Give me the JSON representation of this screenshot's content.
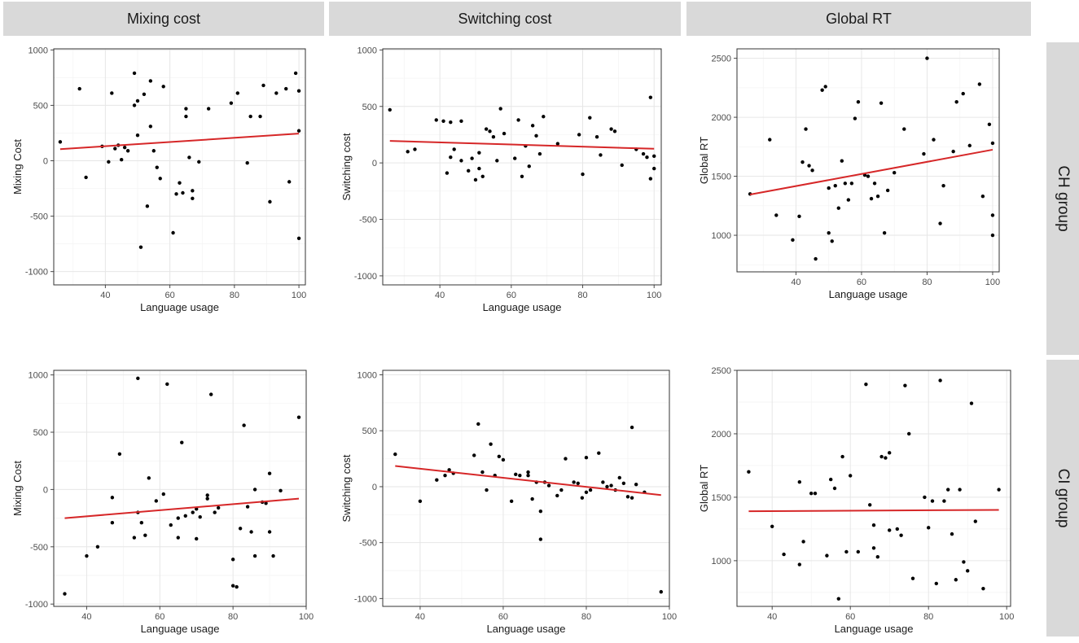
{
  "column_headers": [
    "Mixing cost",
    "Switching cost",
    "Global RT"
  ],
  "row_headers": [
    "CH group",
    "CI group"
  ],
  "colors": {
    "header_bg": "#d9d9d9",
    "grid_major": "#e6e6e6",
    "grid_minor": "#f3f3f3",
    "point": "#000000",
    "fit_line": "#d62728"
  },
  "chart_data": [
    {
      "type": "scatter",
      "title": "Mixing cost / CH group",
      "xlabel": "Language usage",
      "ylabel": "Mixing Cost",
      "xlim": [
        24,
        102
      ],
      "ylim": [
        -1120,
        1010
      ],
      "xticks": [
        40,
        60,
        80,
        100
      ],
      "yticks": [
        -1000,
        -500,
        0,
        500,
        1000
      ],
      "fit": [
        [
          26,
          105
        ],
        [
          100,
          245
        ]
      ],
      "points": [
        [
          26,
          170
        ],
        [
          32,
          650
        ],
        [
          34,
          -150
        ],
        [
          39,
          130
        ],
        [
          41,
          -10
        ],
        [
          42,
          610
        ],
        [
          43,
          110
        ],
        [
          44,
          140
        ],
        [
          45,
          10
        ],
        [
          46,
          120
        ],
        [
          47,
          90
        ],
        [
          49,
          500
        ],
        [
          49,
          790
        ],
        [
          50,
          230
        ],
        [
          50,
          540
        ],
        [
          51,
          -780
        ],
        [
          52,
          600
        ],
        [
          53,
          -410
        ],
        [
          54,
          310
        ],
        [
          54,
          720
        ],
        [
          55,
          90
        ],
        [
          56,
          -60
        ],
        [
          57,
          -160
        ],
        [
          58,
          670
        ],
        [
          61,
          -650
        ],
        [
          62,
          -300
        ],
        [
          63,
          -200
        ],
        [
          64,
          -290
        ],
        [
          65,
          400
        ],
        [
          65,
          470
        ],
        [
          66,
          30
        ],
        [
          67,
          -270
        ],
        [
          67,
          -340
        ],
        [
          69,
          -10
        ],
        [
          72,
          470
        ],
        [
          79,
          520
        ],
        [
          81,
          610
        ],
        [
          84,
          -20
        ],
        [
          85,
          400
        ],
        [
          88,
          400
        ],
        [
          89,
          680
        ],
        [
          91,
          -370
        ],
        [
          93,
          610
        ],
        [
          96,
          650
        ],
        [
          97,
          -190
        ],
        [
          99,
          790
        ],
        [
          100,
          630
        ],
        [
          100,
          270
        ],
        [
          100,
          -700
        ]
      ]
    },
    {
      "type": "scatter",
      "title": "Switching cost / CH group",
      "xlabel": "Language usage",
      "ylabel": "Switching cost",
      "xlim": [
        24,
        102
      ],
      "ylim": [
        -1080,
        1010
      ],
      "xticks": [
        40,
        60,
        80,
        100
      ],
      "yticks": [
        -1000,
        -500,
        0,
        500,
        1000
      ],
      "fit": [
        [
          26,
          195
        ],
        [
          100,
          125
        ]
      ],
      "points": [
        [
          26,
          470
        ],
        [
          31,
          100
        ],
        [
          33,
          120
        ],
        [
          39,
          380
        ],
        [
          41,
          370
        ],
        [
          42,
          -90
        ],
        [
          43,
          50
        ],
        [
          43,
          360
        ],
        [
          44,
          120
        ],
        [
          46,
          370
        ],
        [
          46,
          20
        ],
        [
          48,
          -70
        ],
        [
          49,
          40
        ],
        [
          50,
          -150
        ],
        [
          51,
          -50
        ],
        [
          51,
          90
        ],
        [
          52,
          -120
        ],
        [
          53,
          300
        ],
        [
          54,
          280
        ],
        [
          55,
          230
        ],
        [
          56,
          20
        ],
        [
          57,
          480
        ],
        [
          58,
          260
        ],
        [
          61,
          40
        ],
        [
          62,
          380
        ],
        [
          63,
          -120
        ],
        [
          64,
          150
        ],
        [
          65,
          -30
        ],
        [
          66,
          330
        ],
        [
          67,
          240
        ],
        [
          68,
          80
        ],
        [
          69,
          410
        ],
        [
          73,
          170
        ],
        [
          79,
          250
        ],
        [
          80,
          -100
        ],
        [
          82,
          400
        ],
        [
          84,
          230
        ],
        [
          85,
          70
        ],
        [
          88,
          300
        ],
        [
          89,
          280
        ],
        [
          91,
          -20
        ],
        [
          95,
          120
        ],
        [
          97,
          80
        ],
        [
          98,
          50
        ],
        [
          99,
          580
        ],
        [
          99,
          -140
        ],
        [
          100,
          60
        ],
        [
          100,
          -50
        ]
      ]
    },
    {
      "type": "scatter",
      "title": "Global RT / CH group",
      "xlabel": "Language usage",
      "ylabel": "Global RT",
      "xlim": [
        22,
        102
      ],
      "ylim": [
        690,
        2580
      ],
      "xticks": [
        40,
        60,
        80,
        100
      ],
      "yticks": [
        1000,
        1500,
        2000,
        2500
      ],
      "fit": [
        [
          26,
          1345
        ],
        [
          100,
          1725
        ]
      ],
      "points": [
        [
          26,
          1350
        ],
        [
          32,
          1810
        ],
        [
          34,
          1170
        ],
        [
          39,
          960
        ],
        [
          41,
          1160
        ],
        [
          42,
          1620
        ],
        [
          43,
          1900
        ],
        [
          44,
          1590
        ],
        [
          45,
          1550
        ],
        [
          46,
          800
        ],
        [
          48,
          2230
        ],
        [
          49,
          2260
        ],
        [
          50,
          1020
        ],
        [
          50,
          1400
        ],
        [
          51,
          950
        ],
        [
          52,
          1420
        ],
        [
          53,
          1230
        ],
        [
          54,
          1630
        ],
        [
          55,
          1440
        ],
        [
          56,
          1300
        ],
        [
          57,
          1440
        ],
        [
          58,
          1990
        ],
        [
          59,
          2130
        ],
        [
          61,
          1510
        ],
        [
          62,
          1500
        ],
        [
          63,
          1310
        ],
        [
          64,
          1440
        ],
        [
          65,
          1330
        ],
        [
          66,
          2120
        ],
        [
          67,
          1020
        ],
        [
          68,
          1380
        ],
        [
          70,
          1530
        ],
        [
          73,
          1900
        ],
        [
          79,
          1690
        ],
        [
          80,
          2500
        ],
        [
          82,
          1810
        ],
        [
          84,
          1100
        ],
        [
          85,
          1420
        ],
        [
          88,
          1710
        ],
        [
          89,
          2130
        ],
        [
          91,
          2200
        ],
        [
          93,
          1760
        ],
        [
          96,
          2280
        ],
        [
          97,
          1330
        ],
        [
          99,
          1940
        ],
        [
          100,
          1780
        ],
        [
          100,
          1170
        ],
        [
          100,
          1000
        ]
      ]
    },
    {
      "type": "scatter",
      "title": "Mixing cost / CI group",
      "xlabel": "Language usage",
      "ylabel": "Mixing Cost",
      "xlim": [
        31,
        100
      ],
      "ylim": [
        -1020,
        1040
      ],
      "xticks": [
        40,
        60,
        80,
        100
      ],
      "yticks": [
        -1000,
        -500,
        0,
        500,
        1000
      ],
      "fit": [
        [
          34,
          -250
        ],
        [
          98,
          -80
        ]
      ],
      "points": [
        [
          34,
          -910
        ],
        [
          40,
          -580
        ],
        [
          43,
          -500
        ],
        [
          47,
          -70
        ],
        [
          47,
          -290
        ],
        [
          49,
          310
        ],
        [
          53,
          -420
        ],
        [
          54,
          970
        ],
        [
          54,
          -200
        ],
        [
          55,
          -290
        ],
        [
          56,
          -400
        ],
        [
          57,
          100
        ],
        [
          59,
          -100
        ],
        [
          61,
          -40
        ],
        [
          62,
          920
        ],
        [
          63,
          -310
        ],
        [
          65,
          -420
        ],
        [
          65,
          -250
        ],
        [
          66,
          410
        ],
        [
          67,
          -230
        ],
        [
          69,
          -200
        ],
        [
          70,
          -170
        ],
        [
          70,
          -430
        ],
        [
          71,
          -240
        ],
        [
          73,
          -50
        ],
        [
          73,
          -80
        ],
        [
          74,
          830
        ],
        [
          75,
          -200
        ],
        [
          76,
          -160
        ],
        [
          80,
          -610
        ],
        [
          80,
          -840
        ],
        [
          81,
          -850
        ],
        [
          82,
          -340
        ],
        [
          83,
          560
        ],
        [
          84,
          -150
        ],
        [
          85,
          -370
        ],
        [
          86,
          -580
        ],
        [
          86,
          0
        ],
        [
          88,
          -110
        ],
        [
          89,
          -120
        ],
        [
          90,
          140
        ],
        [
          90,
          -370
        ],
        [
          91,
          -580
        ],
        [
          93,
          -10
        ],
        [
          98,
          630
        ]
      ]
    },
    {
      "type": "scatter",
      "title": "Switching cost / CI group",
      "xlabel": "Language usage",
      "ylabel": "Switching cost",
      "xlim": [
        31,
        100
      ],
      "ylim": [
        -1070,
        1040
      ],
      "xticks": [
        40,
        60,
        80,
        100
      ],
      "yticks": [
        -1000,
        -500,
        0,
        500,
        1000
      ],
      "fit": [
        [
          34,
          185
        ],
        [
          98,
          -75
        ]
      ],
      "points": [
        [
          34,
          290
        ],
        [
          40,
          -130
        ],
        [
          44,
          60
        ],
        [
          46,
          100
        ],
        [
          47,
          150
        ],
        [
          48,
          120
        ],
        [
          53,
          280
        ],
        [
          54,
          560
        ],
        [
          55,
          130
        ],
        [
          56,
          -30
        ],
        [
          57,
          380
        ],
        [
          58,
          100
        ],
        [
          59,
          270
        ],
        [
          60,
          240
        ],
        [
          62,
          -130
        ],
        [
          63,
          110
        ],
        [
          64,
          100
        ],
        [
          66,
          100
        ],
        [
          66,
          130
        ],
        [
          67,
          -110
        ],
        [
          68,
          40
        ],
        [
          69,
          -470
        ],
        [
          69,
          -220
        ],
        [
          70,
          40
        ],
        [
          71,
          10
        ],
        [
          73,
          -80
        ],
        [
          74,
          -30
        ],
        [
          75,
          250
        ],
        [
          77,
          40
        ],
        [
          78,
          30
        ],
        [
          79,
          -100
        ],
        [
          80,
          260
        ],
        [
          80,
          -50
        ],
        [
          81,
          -30
        ],
        [
          83,
          300
        ],
        [
          84,
          40
        ],
        [
          85,
          0
        ],
        [
          86,
          10
        ],
        [
          87,
          -30
        ],
        [
          88,
          80
        ],
        [
          89,
          30
        ],
        [
          90,
          -90
        ],
        [
          91,
          530
        ],
        [
          91,
          -100
        ],
        [
          92,
          20
        ],
        [
          94,
          -50
        ],
        [
          98,
          -940
        ]
      ]
    },
    {
      "type": "scatter",
      "title": "Global RT / CI group",
      "xlabel": "Language usage",
      "ylabel": "Global RT",
      "xlim": [
        31,
        101
      ],
      "ylim": [
        640,
        2500
      ],
      "xticks": [
        40,
        60,
        80,
        100
      ],
      "yticks": [
        1000,
        1500,
        2000,
        2500
      ],
      "fit": [
        [
          34,
          1390
        ],
        [
          98,
          1400
        ]
      ],
      "points": [
        [
          34,
          1700
        ],
        [
          40,
          1270
        ],
        [
          43,
          1050
        ],
        [
          47,
          1620
        ],
        [
          47,
          970
        ],
        [
          48,
          1150
        ],
        [
          50,
          1530
        ],
        [
          51,
          1530
        ],
        [
          54,
          1040
        ],
        [
          55,
          1640
        ],
        [
          56,
          1570
        ],
        [
          57,
          700
        ],
        [
          58,
          1820
        ],
        [
          59,
          1070
        ],
        [
          60,
          1670
        ],
        [
          62,
          1070
        ],
        [
          64,
          2390
        ],
        [
          65,
          1440
        ],
        [
          66,
          1280
        ],
        [
          66,
          1100
        ],
        [
          67,
          1030
        ],
        [
          68,
          1820
        ],
        [
          69,
          1810
        ],
        [
          70,
          1240
        ],
        [
          70,
          1850
        ],
        [
          72,
          1250
        ],
        [
          73,
          1200
        ],
        [
          74,
          2380
        ],
        [
          75,
          2000
        ],
        [
          76,
          860
        ],
        [
          79,
          1500
        ],
        [
          80,
          1260
        ],
        [
          81,
          1470
        ],
        [
          82,
          820
        ],
        [
          83,
          2420
        ],
        [
          84,
          1470
        ],
        [
          85,
          1560
        ],
        [
          86,
          1210
        ],
        [
          87,
          850
        ],
        [
          88,
          1560
        ],
        [
          89,
          990
        ],
        [
          90,
          920
        ],
        [
          91,
          2240
        ],
        [
          92,
          1310
        ],
        [
          94,
          780
        ],
        [
          98,
          1560
        ]
      ]
    }
  ]
}
